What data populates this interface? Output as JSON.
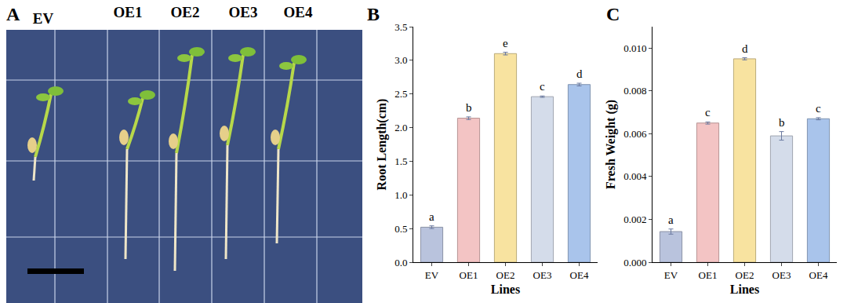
{
  "photo": {
    "panel": "A",
    "labels": [
      "EV",
      "OE1",
      "OE2",
      "OE3",
      "OE4"
    ]
  },
  "chart_data": [
    {
      "type": "bar",
      "title": "B",
      "categories": [
        "EV",
        "OE1",
        "OE2",
        "OE3",
        "OE4"
      ],
      "values": [
        0.52,
        2.14,
        3.1,
        2.46,
        2.64
      ],
      "errors": [
        0.02,
        0.02,
        0.02,
        0.01,
        0.02
      ],
      "annotations": [
        "a",
        "b",
        "e",
        "c",
        "d"
      ],
      "colors": [
        "#b9c3dd",
        "#f3c4c4",
        "#f8e3a0",
        "#d4dcea",
        "#a9c4eb"
      ],
      "x_label": "Lines",
      "y_label": "Root Length(cm)",
      "ylim": [
        0,
        3.5
      ],
      "yticks": [
        {
          "value": 0,
          "label": "0.0"
        },
        0.5,
        {
          "value": 1,
          "label": "1.0"
        },
        1.5,
        {
          "value": 2,
          "label": "2.0"
        },
        2.5,
        {
          "value": 3,
          "label": "3.0"
        },
        3.5
      ],
      "grid": false
    },
    {
      "type": "bar",
      "title": "C",
      "categories": [
        "EV",
        "OE1",
        "OE2",
        "OE3",
        "OE4"
      ],
      "values": [
        0.00143,
        0.0065,
        0.0095,
        0.0059,
        0.0067
      ],
      "errors": [
        0.00012,
        5e-05,
        5e-05,
        0.0002,
        5e-05
      ],
      "annotations": [
        "a",
        "c",
        "d",
        "b",
        "c"
      ],
      "colors": [
        "#b9c3dd",
        "#f3c4c4",
        "#f8e3a0",
        "#d4dcea",
        "#a9c4eb"
      ],
      "x_label": "Lines",
      "y_label": "Fresh Weight (g)",
      "ylim": [
        0,
        0.011
      ],
      "yticks": [
        {
          "value": 0,
          "label": "0.000"
        },
        {
          "value": 0.002,
          "label": "0.002"
        },
        {
          "value": 0.004,
          "label": "0.004"
        },
        {
          "value": 0.006,
          "label": "0.006"
        },
        {
          "value": 0.008,
          "label": "0.008"
        },
        {
          "value": 0.01,
          "label": "0.010"
        }
      ],
      "grid": false
    }
  ]
}
